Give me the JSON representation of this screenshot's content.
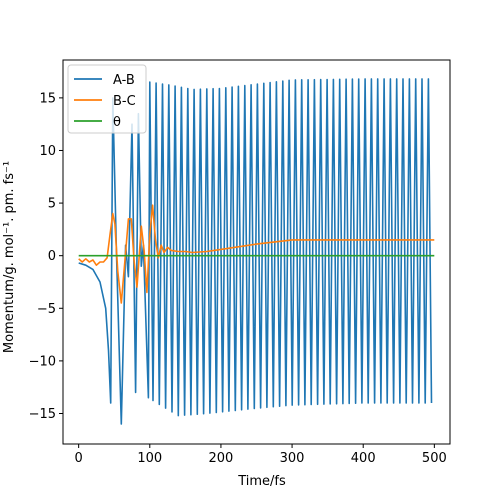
{
  "chart_data": {
    "type": "line",
    "xlabel": "Time/fs",
    "ylabel": "Momentum/g. mol⁻¹. pm. fs⁻¹",
    "xlim": [
      -22,
      522
    ],
    "ylim": [
      -17.9,
      18.6
    ],
    "xticks": [
      0,
      100,
      200,
      300,
      400,
      500
    ],
    "yticks": [
      -15,
      -10,
      -5,
      0,
      5,
      10,
      15
    ],
    "grid": false,
    "legend_position": "top-left",
    "series": [
      {
        "name": "A-B",
        "color": "#1f77b4",
        "description": "collision then fast oscillation",
        "approach": [
          [
            0,
            -0.7
          ],
          [
            10,
            -0.9
          ],
          [
            20,
            -1.3
          ],
          [
            30,
            -2.5
          ],
          [
            38,
            -5.0
          ],
          [
            42,
            -9.0
          ],
          [
            45,
            -14.0
          ]
        ],
        "envelope_max": [
          [
            48,
            15.0
          ],
          [
            56,
            15.0
          ],
          [
            75,
            12.5
          ],
          [
            84,
            13.5
          ],
          [
            100,
            16.5
          ],
          [
            130,
            16.2
          ],
          [
            160,
            15.8
          ],
          [
            200,
            15.9
          ],
          [
            250,
            16.3
          ],
          [
            300,
            16.7
          ],
          [
            400,
            16.8
          ],
          [
            500,
            16.8
          ]
        ],
        "envelope_min": [
          [
            60,
            -16.0
          ],
          [
            80,
            -13.0
          ],
          [
            98,
            -13.5
          ],
          [
            110,
            -14.0
          ],
          [
            140,
            -15.2
          ],
          [
            180,
            -15.0
          ],
          [
            250,
            -14.5
          ],
          [
            300,
            -14.2
          ],
          [
            400,
            -14.0
          ],
          [
            500,
            -14.0
          ]
        ],
        "period_fs": 8.9,
        "oscillation_start": 100
      },
      {
        "name": "B-C",
        "color": "#ff7f0e",
        "points": [
          [
            0,
            -0.3
          ],
          [
            5,
            -0.6
          ],
          [
            10,
            -0.3
          ],
          [
            15,
            -0.6
          ],
          [
            20,
            -0.4
          ],
          [
            25,
            -0.9
          ],
          [
            30,
            -0.6
          ],
          [
            35,
            -0.6
          ],
          [
            40,
            -0.2
          ],
          [
            44,
            2.0
          ],
          [
            48,
            4.0
          ],
          [
            51,
            3.0
          ],
          [
            55,
            -1.5
          ],
          [
            60,
            -4.5
          ],
          [
            65,
            -0.5
          ],
          [
            70,
            3.5
          ],
          [
            74,
            3.5
          ],
          [
            78,
            -0.5
          ],
          [
            82,
            -3.0
          ],
          [
            88,
            2.8
          ],
          [
            92,
            0.5
          ],
          [
            96,
            -3.5
          ],
          [
            100,
            2.0
          ],
          [
            104,
            4.8
          ],
          [
            108,
            1.5
          ],
          [
            112,
            -0.2
          ],
          [
            116,
            1.0
          ],
          [
            120,
            0.3
          ],
          [
            125,
            0.8
          ],
          [
            130,
            0.5
          ],
          [
            140,
            0.4
          ],
          [
            150,
            0.4
          ],
          [
            160,
            0.3
          ],
          [
            180,
            0.4
          ],
          [
            200,
            0.6
          ],
          [
            250,
            1.1
          ],
          [
            300,
            1.5
          ],
          [
            400,
            1.5
          ],
          [
            500,
            1.5
          ]
        ]
      },
      {
        "name": "θ",
        "color": "#2ca02c",
        "points": [
          [
            0,
            0
          ],
          [
            500,
            0
          ]
        ]
      }
    ]
  }
}
